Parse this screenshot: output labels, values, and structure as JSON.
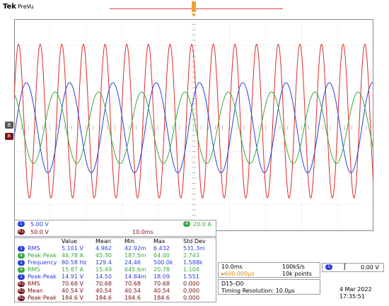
{
  "header": {
    "brand": "Tek",
    "mode": "PreVu"
  },
  "colors": {
    "ch1": "#2a3fd8",
    "ch2": "#3aa83a",
    "math": "#e02a2a",
    "ref": "#7a1212",
    "grid": "#b8b8b8"
  },
  "channels": {
    "ch1": {
      "num": "1",
      "scale": "5.00 V"
    },
    "ch4": {
      "num": "4",
      "scale": "20.0 A"
    },
    "ref": {
      "num": "R1",
      "scale": "50.0 V",
      "time": "10.0ms"
    }
  },
  "measure": {
    "headers": [
      "Value",
      "Mean",
      "Min",
      "Max",
      "Std Dev"
    ],
    "rows": [
      {
        "ch": "1",
        "color": "#2a3fd8",
        "name": "RMS",
        "vals": [
          "5.101 V",
          "4.962",
          "42.92m",
          "6.432",
          "531.3m"
        ]
      },
      {
        "ch": "4",
        "color": "#3aa83a",
        "name": "Peak-Peak",
        "vals": [
          "46.78 A",
          "45.30",
          "187.5m",
          "64.00",
          "2.743"
        ]
      },
      {
        "ch": "1",
        "color": "#2a3fd8",
        "name": "Frequency",
        "vals": [
          "80.58 Hz",
          "129.4",
          "24.46",
          "500.0k",
          "1.588k"
        ]
      },
      {
        "ch": "4",
        "color": "#3aa83a",
        "name": "RMS",
        "vals": [
          "15.87 A",
          "15.49",
          "645.6m",
          "20.78",
          "1.104"
        ]
      },
      {
        "ch": "1",
        "color": "#2a3fd8",
        "name": "Peak-Peak",
        "vals": [
          "14.91 V",
          "14.50",
          "14.84m",
          "18.09",
          "1.551"
        ]
      },
      {
        "ch": "R1",
        "color": "#7a1212",
        "name": "RMS",
        "vals": [
          "70.68 V",
          "70.68",
          "70.68",
          "70.68",
          "0.000"
        ]
      },
      {
        "ch": "R1",
        "color": "#7a1212",
        "name": "Mean",
        "vals": [
          "40.54 V",
          "40.54",
          "40.54",
          "40.54",
          "0.000"
        ]
      },
      {
        "ch": "R1",
        "color": "#7a1212",
        "name": "Peak-Peak",
        "vals": [
          "184.6 V",
          "184.6",
          "184.6",
          "184.6",
          "0.000"
        ]
      }
    ]
  },
  "timebase": {
    "scale": "10.0ms",
    "delay": "▸600.000µs",
    "rate": "100kS/s",
    "points": "10k points"
  },
  "trigger": {
    "source": "1",
    "slope": "ʃ",
    "level": "0.00 V"
  },
  "digital": {
    "label": "D15–D0",
    "resolution": "Timing Resolution: 10.0µs"
  },
  "datetime": {
    "date": "4 Mar 2022",
    "time": "17:35:51"
  },
  "chart_data": {
    "type": "line",
    "series": [
      {
        "color": "#e02a2a",
        "amplitude": 2.9,
        "offset": 0.25,
        "cycles": 16.6,
        "phase": 0.3
      },
      {
        "color": "#2a3fd8",
        "amplitude": 1.7,
        "offset": 0,
        "cycles": 8.3,
        "phase": -0.2
      },
      {
        "color": "#3aa83a",
        "amplitude": 1.35,
        "offset": 0,
        "cycles": 8.3,
        "phase": 1.9
      }
    ],
    "grid": true,
    "divisions": {
      "x": 10,
      "y": 8
    }
  }
}
